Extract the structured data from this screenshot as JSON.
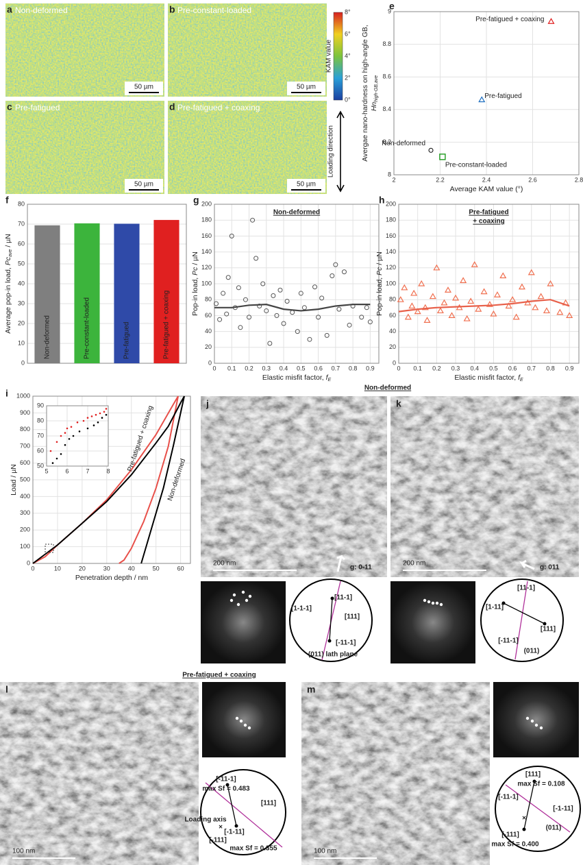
{
  "chart_data": [
    {
      "type": "scatter",
      "panel": "e",
      "xlabel": "Average KAM value (°)",
      "ylabel": "Avergae nano-hardness on high-angle GB,",
      "ylabel_symbol": "Hn",
      "ylabel_sub": "high-GB,ave",
      "xlim": [
        2,
        2.8
      ],
      "xticks": [
        2,
        2.2,
        2.4,
        2.6,
        2.8
      ],
      "ylim": [
        8,
        9
      ],
      "yticks": [
        8,
        8.2,
        8.4,
        8.6,
        8.8,
        9
      ],
      "grid": true,
      "series": [
        {
          "name": "Non-deformed",
          "color": "#000000",
          "marker": "circle",
          "x": [
            2.16
          ],
          "values": [
            8.15
          ]
        },
        {
          "name": "Pre-constant-loaded",
          "color": "#2ca02c",
          "marker": "square",
          "x": [
            2.21
          ],
          "values": [
            8.11
          ]
        },
        {
          "name": "Pre-fatigued",
          "color": "#1f6fc0",
          "marker": "triangle",
          "x": [
            2.38
          ],
          "values": [
            8.46
          ]
        },
        {
          "name": "Pre-fatigued + coaxing",
          "color": "#e02020",
          "marker": "triangle",
          "x": [
            2.68
          ],
          "values": [
            8.94
          ]
        }
      ]
    },
    {
      "type": "bar",
      "panel": "f",
      "ylabel": "Average pop-in load, ",
      "ylabel_symbol": "Pc",
      "ylabel_sub": "ave",
      "ylabel_end": " / µN",
      "categories": [
        "Non-deformed",
        "Pre-constant-loaded",
        "Pre-fatigued",
        "Pre-fatigued + coaxing"
      ],
      "values": [
        69.4,
        70.4,
        70.2,
        72.1
      ],
      "colors": [
        "#7f7f7f",
        "#3cb43c",
        "#2f4aa8",
        "#e02020"
      ],
      "ylim": [
        0,
        80
      ],
      "yticks": [
        0,
        10,
        20,
        30,
        40,
        50,
        60,
        70,
        80
      ],
      "grid": true
    },
    {
      "type": "scatter",
      "panel": "g",
      "title": [
        "Non-deformed"
      ],
      "title_color": "#222222",
      "xlabel": "Elastic misfit factor, ",
      "xlabel_symbol": "f",
      "xlabel_sub": "E",
      "ylabel": "Pop-in load, ",
      "ylabel_symbol": "Pc",
      "ylabel_end": " / µN",
      "xlim": [
        0,
        0.95
      ],
      "xticks": [
        0,
        0.1,
        0.2,
        0.3,
        0.4,
        0.5,
        0.6,
        0.7,
        0.8,
        0.9
      ],
      "ylim": [
        0,
        200
      ],
      "yticks": [
        0,
        20,
        40,
        60,
        80,
        100,
        120,
        140,
        160,
        180,
        200
      ],
      "grid": true,
      "series": [
        {
          "color": "#555555",
          "marker": "circle",
          "x": [
            0.01,
            0.03,
            0.05,
            0.07,
            0.08,
            0.1,
            0.12,
            0.14,
            0.15,
            0.18,
            0.2,
            0.22,
            0.24,
            0.26,
            0.28,
            0.3,
            0.32,
            0.34,
            0.36,
            0.38,
            0.4,
            0.42,
            0.45,
            0.48,
            0.5,
            0.52,
            0.55,
            0.58,
            0.6,
            0.62,
            0.65,
            0.68,
            0.7,
            0.72,
            0.75,
            0.78,
            0.8,
            0.85,
            0.88,
            0.9
          ],
          "values": [
            75,
            55,
            88,
            62,
            108,
            160,
            70,
            95,
            45,
            80,
            58,
            180,
            132,
            72,
            100,
            66,
            25,
            85,
            60,
            92,
            50,
            78,
            64,
            40,
            88,
            70,
            30,
            96,
            58,
            82,
            35,
            110,
            124,
            68,
            115,
            48,
            72,
            58,
            70,
            52
          ]
        }
      ],
      "trend": {
        "color": "#444444",
        "x": [
          0,
          0.1,
          0.2,
          0.3,
          0.4,
          0.5,
          0.6,
          0.7,
          0.8,
          0.9
        ],
        "values": [
          70,
          70,
          73,
          74,
          68,
          66,
          68,
          72,
          74,
          74
        ]
      }
    },
    {
      "type": "scatter",
      "panel": "h",
      "title": [
        "Pre-fatigued",
        "+ coaxing"
      ],
      "title_color": "#e02020",
      "xlabel": "Elastic misfit factor, ",
      "xlabel_symbol": "f",
      "xlabel_sub": "E",
      "ylabel": "Pop-in load, ",
      "ylabel_symbol": "Pc",
      "ylabel_end": " / µN",
      "xlim": [
        0,
        0.95
      ],
      "xticks": [
        0,
        0.1,
        0.2,
        0.3,
        0.4,
        0.5,
        0.6,
        0.7,
        0.8,
        0.9
      ],
      "ylim": [
        0,
        200
      ],
      "yticks": [
        0,
        20,
        40,
        60,
        80,
        100,
        120,
        140,
        160,
        180,
        200
      ],
      "grid": true,
      "series": [
        {
          "color": "#f07050",
          "marker": "triangle",
          "x": [
            0.01,
            0.03,
            0.05,
            0.07,
            0.08,
            0.1,
            0.12,
            0.14,
            0.15,
            0.18,
            0.2,
            0.22,
            0.24,
            0.26,
            0.28,
            0.3,
            0.32,
            0.34,
            0.36,
            0.38,
            0.4,
            0.42,
            0.45,
            0.48,
            0.5,
            0.52,
            0.55,
            0.58,
            0.6,
            0.62,
            0.65,
            0.68,
            0.7,
            0.72,
            0.75,
            0.78,
            0.8,
            0.85,
            0.88,
            0.9
          ],
          "values": [
            80,
            95,
            58,
            72,
            88,
            65,
            100,
            70,
            54,
            84,
            120,
            66,
            76,
            92,
            60,
            82,
            70,
            104,
            56,
            78,
            124,
            68,
            90,
            74,
            62,
            86,
            110,
            72,
            80,
            58,
            96,
            76,
            114,
            70,
            84,
            66,
            100,
            64,
            76,
            60
          ]
        }
      ],
      "trend": {
        "color": "#e8604a",
        "x": [
          0,
          0.1,
          0.2,
          0.3,
          0.4,
          0.5,
          0.6,
          0.7,
          0.8,
          0.9
        ],
        "values": [
          65,
          68,
          70,
          71,
          72,
          73,
          75,
          78,
          80,
          72
        ]
      }
    },
    {
      "type": "line",
      "panel": "i",
      "xlabel": "Penetration depth / nm",
      "ylabel": "Load / µN",
      "xlim": [
        0,
        64
      ],
      "xticks": [
        0,
        10,
        20,
        30,
        40,
        50,
        60
      ],
      "ylim": [
        0,
        1000
      ],
      "yticks": [
        0,
        100,
        200,
        300,
        400,
        500,
        600,
        700,
        800,
        900,
        1000
      ],
      "grid": true,
      "series": [
        {
          "name": "Pre-fatigued + coaxing",
          "color": "#e8504a",
          "x": [
            0,
            5,
            10,
            20,
            30,
            40,
            50,
            57,
            59,
            55,
            50,
            45,
            40,
            37,
            35
          ],
          "values": [
            0,
            40,
            110,
            240,
            380,
            560,
            770,
            950,
            1000,
            700,
            450,
            250,
            90,
            20,
            0
          ]
        },
        {
          "name": "Non-deformed",
          "color": "#000000",
          "x": [
            0,
            10,
            20,
            30,
            40,
            50,
            55,
            60,
            61.5,
            57,
            53,
            49,
            46,
            44
          ],
          "values": [
            0,
            110,
            240,
            370,
            530,
            720,
            820,
            960,
            1000,
            700,
            450,
            250,
            100,
            0
          ]
        }
      ]
    },
    {
      "type": "inset",
      "xlim": [
        5,
        8
      ],
      "xticks": [
        5,
        6,
        7,
        8
      ],
      "ylim": [
        50,
        90
      ],
      "yticks": [
        50,
        60,
        70,
        80,
        90
      ],
      "grid": true,
      "series": [
        {
          "color": "#e02020",
          "marker": "dot",
          "x": [
            5.2,
            5.5,
            5.7,
            5.9,
            6.0,
            6.2,
            6.5,
            6.8,
            7.0,
            7.2,
            7.4,
            7.6,
            7.8,
            7.9
          ],
          "values": [
            60,
            66,
            70,
            72,
            75,
            76,
            79,
            80,
            82,
            83,
            84,
            85,
            86,
            88
          ]
        },
        {
          "color": "#000000",
          "marker": "dot",
          "x": [
            5.3,
            5.5,
            5.7,
            5.9,
            6.1,
            6.3,
            6.6,
            7.0,
            7.3,
            7.5,
            7.7,
            7.9
          ],
          "values": [
            52,
            55,
            58,
            64,
            68,
            70,
            73,
            75,
            77,
            79,
            82,
            84
          ]
        }
      ]
    }
  ],
  "kam_maps": [
    {
      "letter": "a",
      "label": "Non-deformed",
      "scale_bar": "50 µm"
    },
    {
      "letter": "b",
      "label": "Pre-constant-loaded",
      "scale_bar": "50 µm"
    },
    {
      "letter": "c",
      "label": "Pre-fatigued",
      "scale_bar": "50 µm"
    },
    {
      "letter": "d",
      "label": "Pre-fatigued + coaxing",
      "scale_bar": "50 µm"
    }
  ],
  "colorbar": {
    "title": "KAM value",
    "ticks": [
      "0°",
      "2°",
      "4°",
      "6°",
      "8°"
    ]
  },
  "loading_direction": "Loading direction",
  "tem": {
    "non_deformed_title": "Non-deformed",
    "coaxing_title": "Pre-fatigued  +  coaxing",
    "panels": [
      {
        "letter": "j",
        "scale_bar": "200 nm",
        "g_vector": "g: 0-11",
        "stereo": [
          "[11-1]",
          "[1-1-1]",
          "[111]",
          "[-11-1]",
          "(011) lath plane"
        ]
      },
      {
        "letter": "k",
        "scale_bar": "200 nm",
        "g_vector": "g: 011",
        "stereo": [
          "[11-1]",
          "[1-11]",
          "[111]",
          "[-11-1]",
          "(011)"
        ]
      },
      {
        "letter": "l",
        "scale_bar": "100 nm",
        "stereo": [
          "[-11-1]",
          "max Sf = 0.483",
          "[111]",
          "Loading axis",
          "[-1-11]",
          "[-111]",
          "max Sf = 0.355"
        ]
      },
      {
        "letter": "m",
        "scale_bar": "100 nm",
        "stereo": [
          "[111]",
          "max Sf = 0.108",
          "[-11-1]",
          "[-1-11]",
          "(011)",
          "[-111]",
          "max Sf = 0.400"
        ]
      }
    ]
  }
}
